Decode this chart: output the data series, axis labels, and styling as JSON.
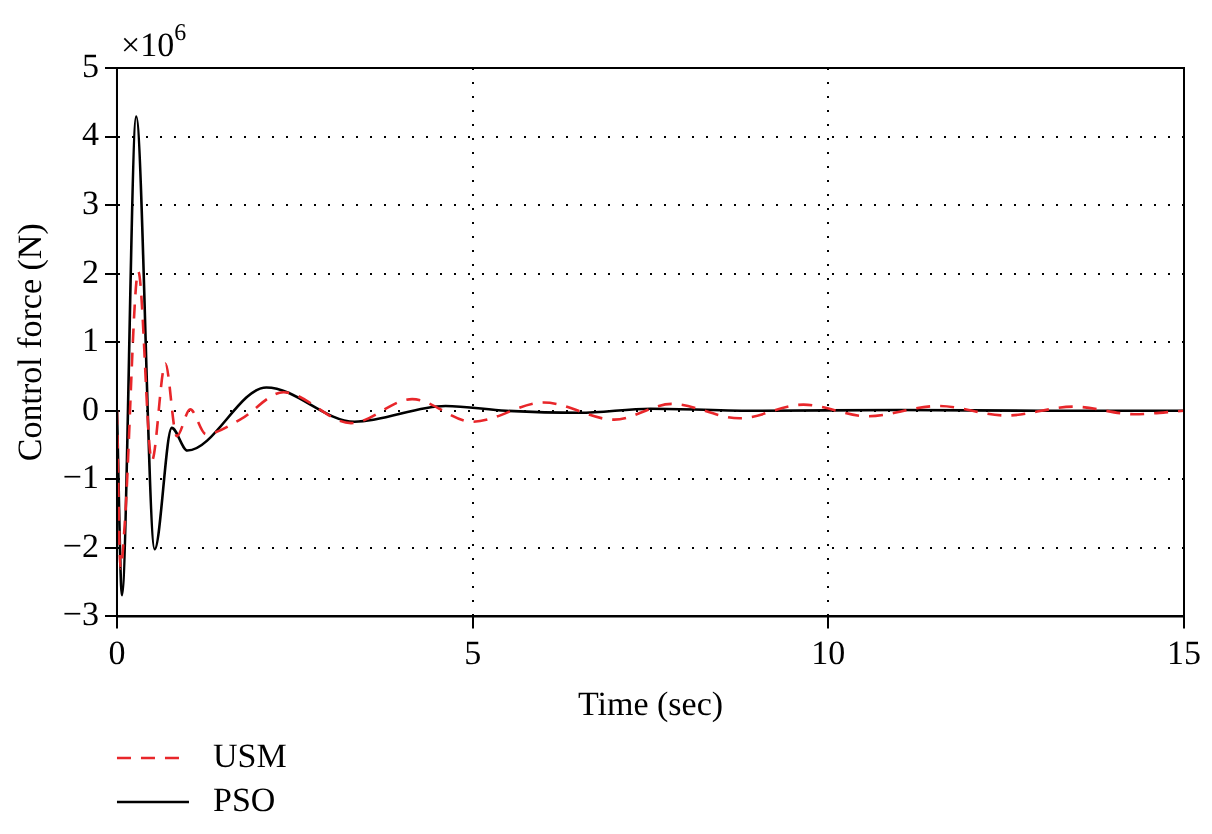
{
  "chart_data": {
    "type": "line",
    "xlabel": "Time (sec)",
    "ylabel": "Control force (N)",
    "annotations": [
      "×10$^{6}$"
    ],
    "xlim": [
      0,
      15
    ],
    "xticks": [
      0,
      5,
      10,
      15
    ],
    "ylim": [
      -3,
      5
    ],
    "yticks": [
      -3,
      -2,
      -1,
      0,
      1,
      2,
      3,
      4,
      5
    ],
    "grid": true,
    "legend": "bottom left",
    "marker": "none",
    "series": [
      {
        "name": "USM",
        "color": "#e8262a",
        "line_style": "dashed",
        "x": [
          0,
          0.05,
          0.11,
          0.3,
          0.49,
          0.68,
          0.84,
          1.03,
          1.25,
          1.73,
          2.34,
          3.29,
          4.15,
          5.0,
          6.0,
          6.99,
          7.8,
          8.75,
          9.65,
          10.55,
          11.55,
          12.5,
          13.45,
          14.3,
          15
        ],
        "values": [
          0,
          -2.3,
          -1.64,
          2.03,
          -0.73,
          0.69,
          -0.37,
          0.02,
          -0.34,
          -0.13,
          0.27,
          -0.18,
          0.17,
          -0.16,
          0.12,
          -0.13,
          0.1,
          -0.11,
          0.09,
          -0.08,
          0.07,
          -0.07,
          0.06,
          -0.05,
          0
        ]
      },
      {
        "name": "PSO",
        "color": "#000000",
        "line_style": "solid",
        "x": [
          0,
          0.07,
          0.27,
          0.53,
          0.77,
          0.99,
          2.1,
          3.34,
          4.62,
          5.47,
          6.5,
          7.5,
          9,
          11,
          13,
          15
        ],
        "values": [
          0,
          -2.69,
          4.29,
          -2.02,
          -0.25,
          -0.58,
          0.34,
          -0.16,
          0.07,
          0,
          -0.03,
          0.03,
          0,
          0.01,
          0,
          0
        ]
      }
    ]
  }
}
